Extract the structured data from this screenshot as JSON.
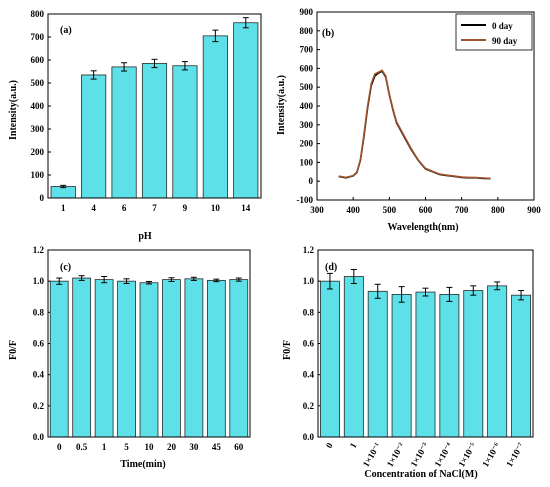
{
  "colors": {
    "bar_fill": "#5ee0e8",
    "bar_stroke": "#2a2a2a",
    "line_0_day": "#000000",
    "line_90_day": "#a0522d",
    "error_bar": "#000000"
  },
  "chart_data": [
    {
      "panel": "(a)",
      "type": "bar",
      "xlabel": "pH",
      "ylabel": "Intensity(a.u.)",
      "ylim": [
        0,
        800
      ],
      "yticks": [
        0,
        100,
        200,
        300,
        400,
        500,
        600,
        700,
        800
      ],
      "categories": [
        "1",
        "4",
        "6",
        "7",
        "9",
        "10",
        "14"
      ],
      "values": [
        50,
        535,
        570,
        585,
        575,
        705,
        762
      ],
      "errors": [
        5,
        18,
        18,
        18,
        18,
        25,
        22
      ]
    },
    {
      "panel": "(b)",
      "type": "line",
      "xlabel": "Wavelength(nm)",
      "ylabel": "Intensity(a.u.)",
      "xlim": [
        300,
        900
      ],
      "ylim": [
        -100,
        900
      ],
      "xticks": [
        300,
        400,
        500,
        600,
        700,
        800,
        900
      ],
      "yticks": [
        -100,
        0,
        100,
        200,
        300,
        400,
        500,
        600,
        700,
        800,
        900
      ],
      "legend_position": "top-right",
      "series": [
        {
          "name": "0 day",
          "x": [
            360,
            380,
            400,
            410,
            420,
            430,
            440,
            450,
            460,
            470,
            480,
            490,
            500,
            510,
            520,
            540,
            560,
            580,
            600,
            620,
            640,
            660,
            680,
            700,
            720,
            740,
            760,
            780
          ],
          "y": [
            25,
            18,
            28,
            45,
            110,
            240,
            390,
            510,
            560,
            575,
            585,
            555,
            460,
            380,
            310,
            240,
            170,
            110,
            65,
            50,
            35,
            30,
            25,
            20,
            18,
            18,
            15,
            14
          ]
        },
        {
          "name": "90 day",
          "x": [
            360,
            380,
            400,
            410,
            420,
            430,
            440,
            450,
            460,
            470,
            480,
            490,
            500,
            510,
            520,
            540,
            560,
            580,
            600,
            620,
            640,
            660,
            680,
            700,
            720,
            740,
            760,
            780
          ],
          "y": [
            27,
            20,
            30,
            48,
            115,
            250,
            400,
            520,
            570,
            580,
            590,
            560,
            465,
            385,
            315,
            245,
            175,
            112,
            68,
            52,
            37,
            32,
            27,
            22,
            20,
            19,
            17,
            15
          ]
        }
      ]
    },
    {
      "panel": "(c)",
      "type": "bar",
      "xlabel": "Time(min)",
      "ylabel": "F0/F",
      "ylim": [
        0.0,
        1.2
      ],
      "yticks": [
        "0.0",
        "0.2",
        "0.4",
        "0.6",
        "0.8",
        "1.0",
        "1.2"
      ],
      "categories": [
        "0",
        "0.5",
        "1",
        "5",
        "10",
        "20",
        "30",
        "45",
        "60"
      ],
      "values": [
        1.0,
        1.02,
        1.01,
        1.0,
        0.99,
        1.01,
        1.015,
        1.005,
        1.01
      ],
      "errors": [
        0.02,
        0.015,
        0.02,
        0.015,
        0.008,
        0.012,
        0.01,
        0.008,
        0.01
      ]
    },
    {
      "panel": "(d)",
      "type": "bar",
      "xlabel": "Concentration of NaCl(M)",
      "ylabel": "F0/F",
      "ylim": [
        0.0,
        1.2
      ],
      "yticks": [
        "0.0",
        "0.2",
        "0.4",
        "0.6",
        "0.8",
        "1.0",
        "1.2"
      ],
      "categories": [
        "0",
        "1",
        "1×10⁻¹",
        "1×10⁻²",
        "1×10⁻³",
        "1×10⁻⁴",
        "1×10⁻⁵",
        "1×10⁻⁶",
        "1×10⁻⁷"
      ],
      "values": [
        1.0,
        1.03,
        0.935,
        0.915,
        0.93,
        0.915,
        0.94,
        0.97,
        0.91
      ],
      "errors": [
        0.05,
        0.045,
        0.045,
        0.05,
        0.025,
        0.045,
        0.03,
        0.025,
        0.03
      ]
    }
  ]
}
